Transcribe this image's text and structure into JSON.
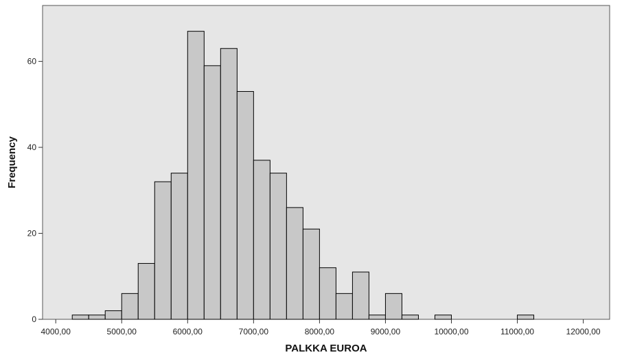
{
  "chart_data": {
    "type": "bar",
    "title": "",
    "xlabel": "PALKKA EUROA",
    "ylabel": "Frequency",
    "xlim": [
      3800,
      12400
    ],
    "ylim": [
      0,
      73
    ],
    "grid": false,
    "x_ticks": [
      4000,
      5000,
      6000,
      7000,
      8000,
      9000,
      10000,
      11000,
      12000
    ],
    "x_tick_labels": [
      "4000,00",
      "5000,00",
      "6000,00",
      "7000,00",
      "8000,00",
      "9000,00",
      "10000,00",
      "11000,00",
      "12000,00"
    ],
    "y_ticks": [
      0,
      20,
      40,
      60
    ],
    "y_tick_labels": [
      "0",
      "20",
      "40",
      "60"
    ],
    "bin_width": 250,
    "bins": [
      {
        "start": 4250,
        "value": 1
      },
      {
        "start": 4500,
        "value": 1
      },
      {
        "start": 4750,
        "value": 2
      },
      {
        "start": 5000,
        "value": 6
      },
      {
        "start": 5250,
        "value": 13
      },
      {
        "start": 5500,
        "value": 32
      },
      {
        "start": 5750,
        "value": 34
      },
      {
        "start": 6000,
        "value": 67
      },
      {
        "start": 6250,
        "value": 59
      },
      {
        "start": 6500,
        "value": 63
      },
      {
        "start": 6750,
        "value": 53
      },
      {
        "start": 7000,
        "value": 37
      },
      {
        "start": 7250,
        "value": 34
      },
      {
        "start": 7500,
        "value": 26
      },
      {
        "start": 7750,
        "value": 21
      },
      {
        "start": 8000,
        "value": 12
      },
      {
        "start": 8250,
        "value": 6
      },
      {
        "start": 8500,
        "value": 11
      },
      {
        "start": 8750,
        "value": 1
      },
      {
        "start": 9000,
        "value": 6
      },
      {
        "start": 9250,
        "value": 1
      },
      {
        "start": 9750,
        "value": 1
      },
      {
        "start": 11000,
        "value": 1
      }
    ],
    "colors": {
      "plot_background": "#e6e6e6",
      "bar_fill": "#c8c8c8",
      "bar_stroke": "#000000",
      "frame": "#555555"
    }
  }
}
